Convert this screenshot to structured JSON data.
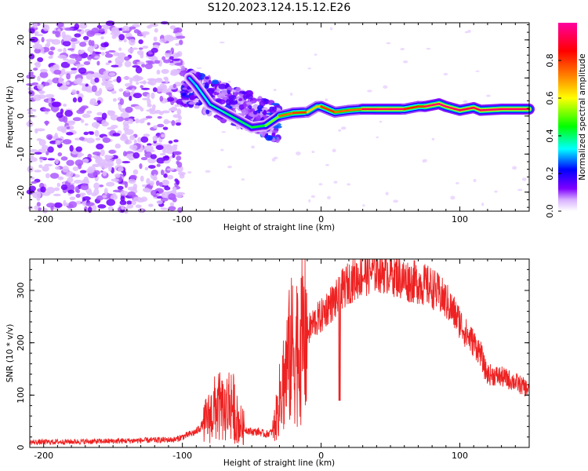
{
  "title": "S120.2023.124.15.12.E26",
  "chart_data": [
    {
      "type": "heatmap",
      "xlabel": "Height of straight line (km)",
      "ylabel": "Frequency (Hz)",
      "xlim": [
        -210,
        150
      ],
      "ylim": [
        -25,
        24.5
      ],
      "xticks": [
        -200,
        -100,
        0,
        100
      ],
      "yticks": [
        -20,
        -10,
        0,
        10,
        20
      ],
      "colorbar": {
        "label": "Normalized spectral amplitude",
        "range": [
          0,
          1
        ],
        "ticks": [
          "0.0",
          "0.2",
          "0.4",
          "0.6",
          "0.8"
        ],
        "colors": [
          "#ffffff",
          "#d8b0ff",
          "#7f00ff",
          "#0000ff",
          "#00ffff",
          "#00ff00",
          "#ffff00",
          "#ff8000",
          "#ff0000",
          "#ff00ff"
        ]
      },
      "noise_region": {
        "x": [
          -210,
          -100
        ],
        "y": [
          -25,
          24.5
        ],
        "amplitude": 0.15
      },
      "transition_region": {
        "x": [
          -100,
          -30
        ],
        "amplitude": 0.3
      },
      "ridge": [
        {
          "x": -95,
          "y": 10,
          "amp": 0.3
        },
        {
          "x": -90,
          "y": 8,
          "amp": 0.32
        },
        {
          "x": -80,
          "y": 3,
          "amp": 0.35
        },
        {
          "x": -70,
          "y": 1,
          "amp": 0.38
        },
        {
          "x": -60,
          "y": -1,
          "amp": 0.4
        },
        {
          "x": -50,
          "y": -3,
          "amp": 0.42
        },
        {
          "x": -40,
          "y": -2.5,
          "amp": 0.45
        },
        {
          "x": -30,
          "y": 0,
          "amp": 0.6
        },
        {
          "x": -20,
          "y": 0.8,
          "amp": 0.9
        },
        {
          "x": -10,
          "y": 1,
          "amp": 0.7
        },
        {
          "x": -3,
          "y": 2.5,
          "amp": 0.6
        },
        {
          "x": 0,
          "y": 2.5,
          "amp": 0.7
        },
        {
          "x": 10,
          "y": 1,
          "amp": 0.9
        },
        {
          "x": 20,
          "y": 1.5,
          "amp": 0.6
        },
        {
          "x": 30,
          "y": 1.8,
          "amp": 0.9
        },
        {
          "x": 40,
          "y": 1.8,
          "amp": 0.95
        },
        {
          "x": 50,
          "y": 1.8,
          "amp": 0.95
        },
        {
          "x": 60,
          "y": 1.8,
          "amp": 0.95
        },
        {
          "x": 70,
          "y": 2.5,
          "amp": 0.7
        },
        {
          "x": 75,
          "y": 2.5,
          "amp": 0.9
        },
        {
          "x": 85,
          "y": 3.2,
          "amp": 1.0
        },
        {
          "x": 90,
          "y": 2.5,
          "amp": 0.95
        },
        {
          "x": 100,
          "y": 1.5,
          "amp": 0.95
        },
        {
          "x": 110,
          "y": 2.2,
          "amp": 0.9
        },
        {
          "x": 115,
          "y": 1.5,
          "amp": 0.95
        },
        {
          "x": 130,
          "y": 1.8,
          "amp": 0.95
        },
        {
          "x": 150,
          "y": 1.8,
          "amp": 0.95
        }
      ]
    },
    {
      "type": "line",
      "xlabel": "Height of straight line (km)",
      "ylabel": "SNR (10 * v/v)",
      "xlim": [
        -210,
        150
      ],
      "ylim": [
        0,
        360
      ],
      "xticks": [
        -200,
        -100,
        0,
        100
      ],
      "yticks": [
        0,
        100,
        200,
        300
      ],
      "color": "#ee2222",
      "x": [
        -210,
        -150,
        -105,
        -90,
        -80,
        -75,
        -70,
        -65,
        -60,
        -55,
        -50,
        -45,
        -40,
        -35,
        -32,
        -28,
        -25,
        -22,
        -20,
        -15,
        -10,
        -5,
        0,
        5,
        10,
        13,
        15,
        20,
        30,
        40,
        50,
        60,
        70,
        80,
        90,
        95,
        100,
        105,
        110,
        115,
        118,
        120,
        130,
        140,
        150
      ],
      "y": [
        10,
        12,
        15,
        30,
        60,
        80,
        70,
        90,
        50,
        35,
        30,
        30,
        25,
        30,
        60,
        120,
        150,
        180,
        190,
        195,
        220,
        240,
        250,
        270,
        280,
        290,
        300,
        315,
        330,
        340,
        335,
        320,
        315,
        305,
        280,
        260,
        240,
        215,
        200,
        180,
        150,
        140,
        135,
        125,
        110
      ]
    }
  ]
}
